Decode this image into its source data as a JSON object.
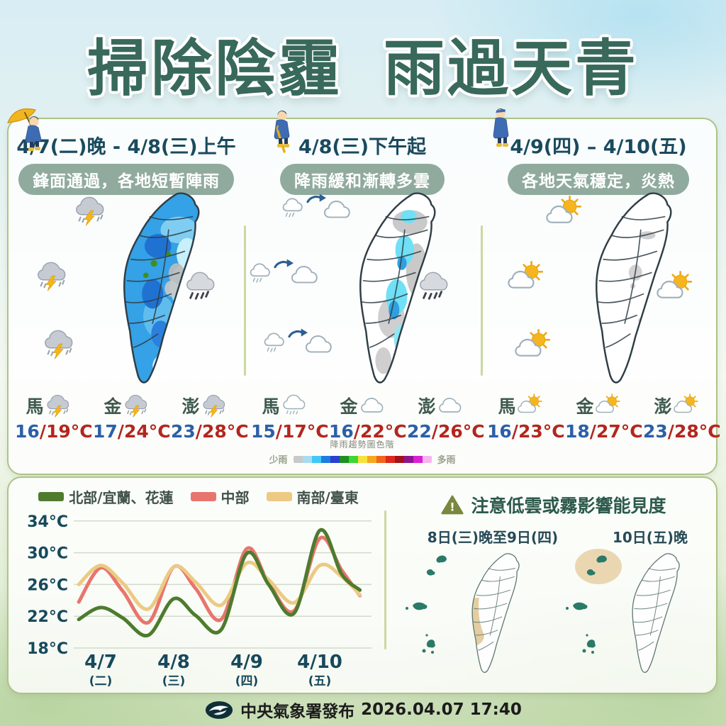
{
  "title": {
    "part1": "掃除陰霾",
    "part2": "雨過天青"
  },
  "panels": [
    {
      "date": "4/7(二)晚 - 4/8(三)上午",
      "summary": "鋒面通過，各地短暫陣雨",
      "map": "rain-heavy",
      "side_icons": [
        "thunderstorm",
        "thunderstorm",
        "thunderstorm",
        "rain-dark"
      ],
      "stations": [
        {
          "name": "馬",
          "icon": "thunderstorm",
          "low": "16",
          "high": "19"
        },
        {
          "name": "金",
          "icon": "thunderstorm",
          "low": "17",
          "high": "24"
        },
        {
          "name": "澎",
          "icon": "thunderstorm",
          "low": "23",
          "high": "28"
        }
      ]
    },
    {
      "date": "4/8(三)下午起",
      "summary": "降雨緩和漸轉多雲",
      "map": "rain-easing",
      "side_icons": [
        "rain-to-cloud",
        "rain-to-cloud",
        "rain-to-cloud",
        "rain-dark"
      ],
      "stations": [
        {
          "name": "馬",
          "icon": "rain-light",
          "low": "15",
          "high": "17"
        },
        {
          "name": "金",
          "icon": "cloud",
          "low": "16",
          "high": "22"
        },
        {
          "name": "澎",
          "icon": "cloud",
          "low": "22",
          "high": "26"
        }
      ]
    },
    {
      "date": "4/9(四) – 4/10(五)",
      "summary": "各地天氣穩定，炎熱",
      "map": "clear",
      "side_icons": [
        "partly-sunny",
        "partly-sunny",
        "partly-sunny",
        "partly-sunny"
      ],
      "stations": [
        {
          "name": "馬",
          "icon": "partly-sunny",
          "low": "16",
          "high": "23"
        },
        {
          "name": "金",
          "icon": "partly-sunny",
          "low": "18",
          "high": "27"
        },
        {
          "name": "澎",
          "icon": "partly-sunny",
          "low": "23",
          "high": "28"
        }
      ]
    }
  ],
  "temp_sep": "/",
  "temp_unit": "°C",
  "rain_scale": {
    "title": "降雨趨勢圖色階",
    "left_label": "少雨",
    "right_label": "多雨",
    "colors": [
      "#c9c9c9",
      "#a8dcf0",
      "#42c8f5",
      "#1e7ce0",
      "#2b3fd0",
      "#1f8f24",
      "#3ed632",
      "#f7e13c",
      "#f7a61e",
      "#f2641a",
      "#dc281e",
      "#a21218",
      "#8c1690",
      "#dc1ed6",
      "#f4b6ee"
    ]
  },
  "chart_data": {
    "type": "line",
    "title": "",
    "xlabel": "",
    "ylabel": "",
    "ylim": [
      18,
      34
    ],
    "grid": "horizontal",
    "legend_position": "top",
    "y_ticks": [
      {
        "value": 34,
        "label": "34°C"
      },
      {
        "value": 30,
        "label": "30°C"
      },
      {
        "value": 26,
        "label": "26°C"
      },
      {
        "value": 22,
        "label": "22°C"
      },
      {
        "value": 18,
        "label": "18°C"
      }
    ],
    "categories": [
      {
        "day": "4/7",
        "week": "(二)"
      },
      {
        "day": "4/8",
        "week": "(三)"
      },
      {
        "day": "4/9",
        "week": "(四)"
      },
      {
        "day": "4/10",
        "week": "(五)"
      }
    ],
    "series": [
      {
        "name": "北部/宜蘭、花蓮",
        "color": "#4e7b2e",
        "points": [
          [
            -0.3,
            21.6
          ],
          [
            0,
            23.1
          ],
          [
            0.3,
            21.8
          ],
          [
            0.65,
            19.6
          ],
          [
            1,
            24.2
          ],
          [
            1.3,
            22.1
          ],
          [
            1.65,
            20.3
          ],
          [
            2,
            29.9
          ],
          [
            2.3,
            26.0
          ],
          [
            2.65,
            22.4
          ],
          [
            3,
            32.8
          ],
          [
            3.3,
            27.3
          ],
          [
            3.55,
            25.3
          ]
        ]
      },
      {
        "name": "中部",
        "color": "#e8756d",
        "points": [
          [
            -0.3,
            23.8
          ],
          [
            0,
            28.1
          ],
          [
            0.3,
            25.2
          ],
          [
            0.65,
            21.2
          ],
          [
            1,
            28.2
          ],
          [
            1.3,
            25.5
          ],
          [
            1.65,
            21.6
          ],
          [
            2,
            30.5
          ],
          [
            2.3,
            26.2
          ],
          [
            2.65,
            22.7
          ],
          [
            3,
            31.8
          ],
          [
            3.3,
            27.8
          ],
          [
            3.55,
            24.6
          ]
        ]
      },
      {
        "name": "南部/臺東",
        "color": "#ecca83",
        "points": [
          [
            -0.3,
            26.0
          ],
          [
            0,
            28.4
          ],
          [
            0.3,
            26.2
          ],
          [
            0.65,
            22.9
          ],
          [
            1,
            28.2
          ],
          [
            1.3,
            26.3
          ],
          [
            1.65,
            23.4
          ],
          [
            2,
            28.7
          ],
          [
            2.3,
            26.6
          ],
          [
            2.65,
            23.7
          ],
          [
            3,
            28.4
          ],
          [
            3.3,
            27.0
          ],
          [
            3.55,
            24.7
          ]
        ]
      }
    ]
  },
  "fog": {
    "title": "注意低雲或霧影響能見度",
    "warning_icon": "warning-triangle-icon",
    "periods": [
      {
        "label": "8日(三)晚至9日(四)",
        "highlight_area": "west-central-coast"
      },
      {
        "label": "10日(五)晚",
        "highlight_area": "matsu-islands"
      }
    ]
  },
  "footer": {
    "logo": "cwa-logo",
    "agency": "中央氣象署發布",
    "datetime": "2026.04.07 17:40"
  }
}
